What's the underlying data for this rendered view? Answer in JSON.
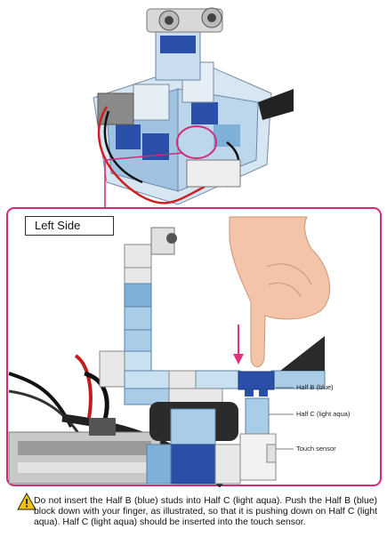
{
  "detail": {
    "side_label": "Left Side",
    "callouts": {
      "half_b": "Half B (blue)",
      "half_c": "Half C (light aqua)",
      "sensor": "Touch sensor"
    }
  },
  "note": {
    "icon": "warning-icon",
    "text": "Do not insert the Half B (blue) studs into Half C (light aqua). Push the Half B (blue) block down with your finger, as illustrated, so that it is pushing down on Half C (light aqua). Half C (light aqua) should be inserted into the touch sensor."
  },
  "colors": {
    "frame": "#d42a7a",
    "blue_block": "#2a4fa8",
    "light_aqua_block": "#a9cde6",
    "white_block": "#e8e8e8",
    "arrow": "#e0307f"
  }
}
